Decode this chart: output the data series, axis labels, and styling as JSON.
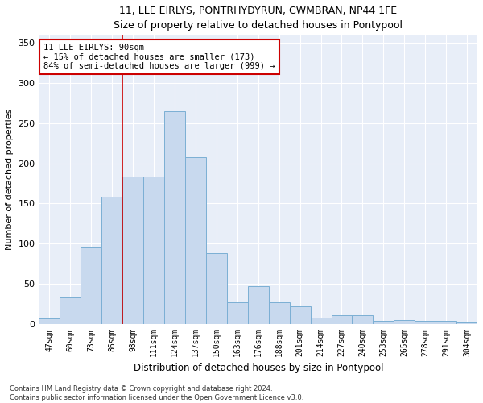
{
  "title1": "11, LLE EIRLYS, PONTRHYDYRUN, CWMBRAN, NP44 1FE",
  "title2": "Size of property relative to detached houses in Pontypool",
  "xlabel": "Distribution of detached houses by size in Pontypool",
  "ylabel": "Number of detached properties",
  "categories": [
    "47sqm",
    "60sqm",
    "73sqm",
    "86sqm",
    "98sqm",
    "111sqm",
    "124sqm",
    "137sqm",
    "150sqm",
    "163sqm",
    "176sqm",
    "188sqm",
    "201sqm",
    "214sqm",
    "227sqm",
    "240sqm",
    "253sqm",
    "265sqm",
    "278sqm",
    "291sqm",
    "304sqm"
  ],
  "values": [
    7,
    33,
    95,
    158,
    183,
    183,
    265,
    208,
    88,
    27,
    47,
    27,
    22,
    8,
    11,
    11,
    4,
    5,
    4,
    4,
    2
  ],
  "bar_color": "#c8d9ee",
  "bar_edge_color": "#7bafd4",
  "vline_color": "#cc0000",
  "vline_x_index": 3.5,
  "annotation_text": "11 LLE EIRLYS: 90sqm\n← 15% of detached houses are smaller (173)\n84% of semi-detached houses are larger (999) →",
  "annotation_box_color": "white",
  "annotation_box_edge": "#cc0000",
  "footer1": "Contains HM Land Registry data © Crown copyright and database right 2024.",
  "footer2": "Contains public sector information licensed under the Open Government Licence v3.0.",
  "ylim": [
    0,
    360
  ],
  "yticks": [
    0,
    50,
    100,
    150,
    200,
    250,
    300,
    350
  ],
  "bg_color": "#e8eef8",
  "fig_color": "white",
  "title1_fontsize": 9,
  "title2_fontsize": 9,
  "xlabel_fontsize": 8.5,
  "ylabel_fontsize": 8,
  "tick_fontsize": 7,
  "annotation_fontsize": 7.5,
  "footer_fontsize": 6
}
